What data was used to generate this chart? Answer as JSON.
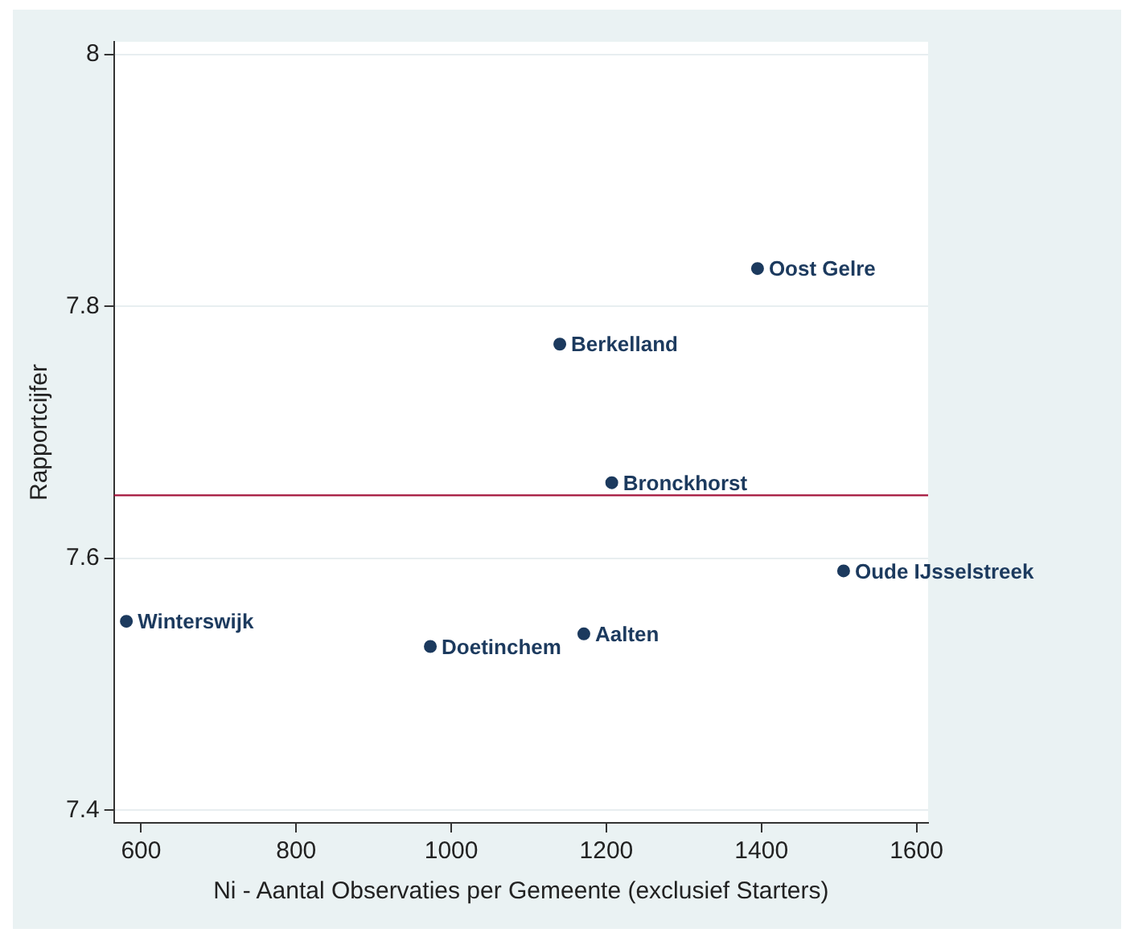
{
  "chart_data": {
    "type": "scatter",
    "xlabel": "Ni - Aantal Observaties per Gemeente (exclusief Starters)",
    "ylabel": "Rapportcijfer",
    "series": [
      {
        "color": "#1c3a5e",
        "x": [
          1395,
          1140,
          1207,
          1506,
          581,
          973,
          1171
        ],
        "values": [
          7.83,
          7.77,
          7.66,
          7.59,
          7.55,
          7.53,
          7.54
        ]
      }
    ],
    "annotations": [
      {
        "text": "Oost Gelre",
        "x": 1395,
        "y": 7.83
      },
      {
        "text": "Berkelland",
        "x": 1140,
        "y": 7.77
      },
      {
        "text": "Bronckhorst",
        "x": 1207,
        "y": 7.66
      },
      {
        "text": "Oude IJsselstreek",
        "x": 1506,
        "y": 7.59
      },
      {
        "text": "Winterswijk",
        "x": 581,
        "y": 7.55
      },
      {
        "text": "Doetinchem",
        "x": 973,
        "y": 7.53
      },
      {
        "text": "Aalten",
        "x": 1171,
        "y": 7.54
      }
    ],
    "ref_lines": [
      {
        "axis": "y",
        "value": 7.65,
        "color": "#a3123a"
      }
    ],
    "xlim": [
      565,
      1615
    ],
    "xticks": [
      600,
      800,
      1000,
      1200,
      1400,
      1600
    ],
    "ylim": [
      7.39,
      8.01
    ],
    "yticks": [
      7.4,
      7.6,
      7.8,
      8
    ],
    "grid": "y",
    "legend": false,
    "marker": "circle"
  }
}
